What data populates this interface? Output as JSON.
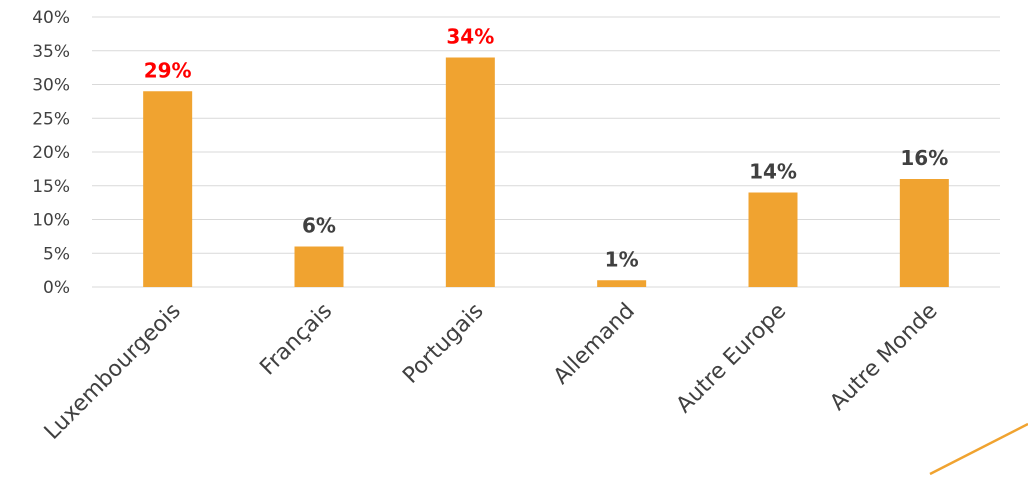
{
  "chart_data": {
    "type": "bar",
    "title": "",
    "xlabel": "",
    "ylabel": "",
    "categories": [
      "Luxembourgeois",
      "Français",
      "Portugais",
      "Allemand",
      "Autre Europe",
      "Autre Monde"
    ],
    "values": [
      29,
      6,
      34,
      1,
      14,
      16
    ],
    "data_labels": [
      "29%",
      "6%",
      "34%",
      "1%",
      "14%",
      "16%"
    ],
    "highlighted": [
      true,
      false,
      true,
      false,
      false,
      false
    ],
    "ylim": [
      0,
      40
    ],
    "yticks": [
      0,
      5,
      10,
      15,
      20,
      25,
      30,
      35,
      40
    ],
    "ytick_labels": [
      "0%",
      "5%",
      "10%",
      "15%",
      "20%",
      "25%",
      "30%",
      "35%",
      "40%"
    ],
    "grid": true,
    "legend": "none",
    "colors": {
      "bar": "#f0a330",
      "label_default": "#404040",
      "label_highlight": "#ff0000",
      "grid": "#d9d9d9",
      "accent_line": "#f0a330"
    }
  }
}
